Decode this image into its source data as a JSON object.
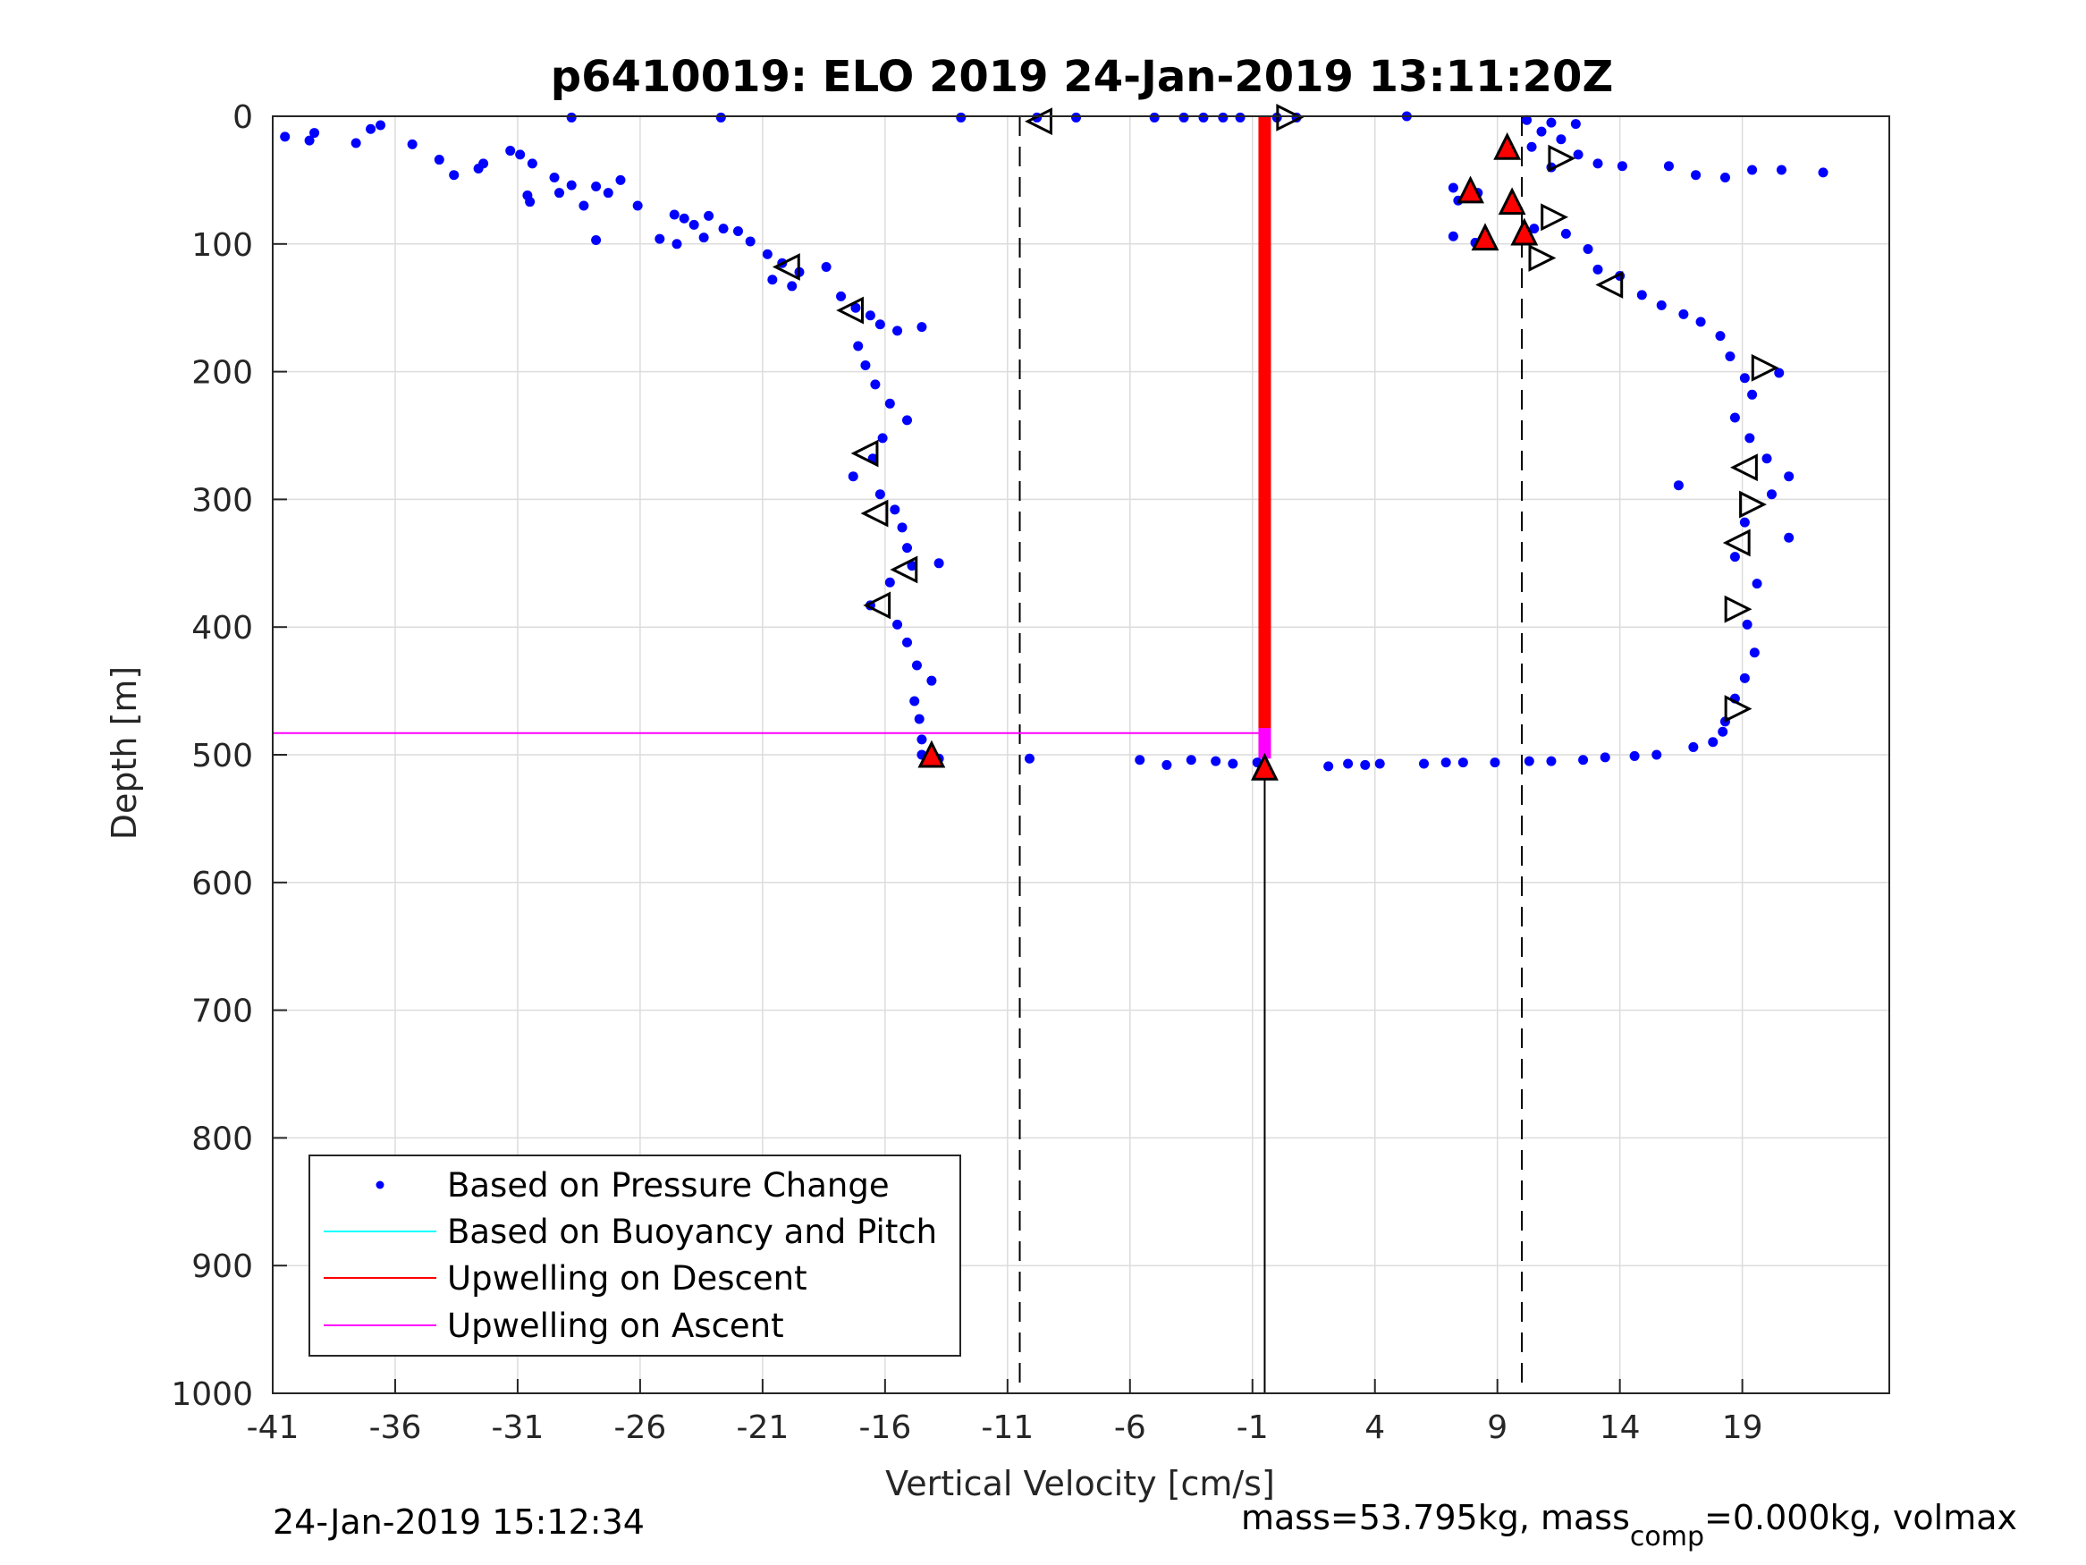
{
  "footer": {
    "timestamp": "24-Jan-2019 15:12:34",
    "mass_prefix": "mass=53.795kg, mass",
    "mass_sub": "comp",
    "mass_suffix": "=0.000kg, volmax"
  },
  "colors": {
    "pressure": "#0000ff",
    "buoyancy": "#00ffff",
    "descent": "#ff0000",
    "ascent": "#ff00ff",
    "marker_fill": "#ff0000",
    "reference": "#000000"
  },
  "chart_data": {
    "type": "scatter",
    "title": "p6410019: ELO 2019 24-Jan-2019 13:11:20Z",
    "xlabel": "Vertical Velocity [cm/s]",
    "ylabel": "Depth [m]",
    "xlim": [
      -41,
      25
    ],
    "ylim": [
      0,
      1000
    ],
    "y_reversed": true,
    "grid": true,
    "legend_position": "bottom-left",
    "xticks": [
      -41,
      -36,
      -31,
      -26,
      -21,
      -16,
      -11,
      -6,
      -1,
      4,
      9,
      14,
      19
    ],
    "yticks": [
      0,
      100,
      200,
      300,
      400,
      500,
      600,
      700,
      800,
      900,
      1000
    ],
    "legend": [
      "Based on Pressure Change",
      "Based on Buoyancy and Pitch",
      "Upwelling on Descent",
      "Upwelling on Ascent"
    ],
    "reference_lines": {
      "dashed_x": [
        -10.5,
        10
      ],
      "solid_x": -0.5,
      "solid_y_range": [
        509,
        1000
      ],
      "ascent_depths": [
        0,
        483
      ]
    },
    "series": [
      {
        "name": "Based on Pressure Change",
        "kind": "points",
        "points": [
          [
            -40.5,
            16
          ],
          [
            -39.5,
            19
          ],
          [
            -39.3,
            13
          ],
          [
            -37.6,
            21
          ],
          [
            -37,
            10
          ],
          [
            -36.6,
            7
          ],
          [
            -35.3,
            22
          ],
          [
            -34.2,
            34
          ],
          [
            -33.6,
            46
          ],
          [
            -32.6,
            41
          ],
          [
            -32.4,
            37
          ],
          [
            -31.3,
            27
          ],
          [
            -30.9,
            30
          ],
          [
            -30.4,
            37
          ],
          [
            -30.6,
            62
          ],
          [
            -30.5,
            67
          ],
          [
            -29.5,
            48
          ],
          [
            -29.3,
            60
          ],
          [
            -28.8,
            54
          ],
          [
            -28.3,
            70
          ],
          [
            -27.8,
            55
          ],
          [
            -27.3,
            60
          ],
          [
            -26.8,
            50
          ],
          [
            -26.1,
            70
          ],
          [
            -24.6,
            77
          ],
          [
            -24.2,
            80
          ],
          [
            -23.8,
            85
          ],
          [
            -23.2,
            78
          ],
          [
            -22.6,
            88
          ],
          [
            -22,
            90
          ],
          [
            -21.5,
            98
          ],
          [
            -27.8,
            97
          ],
          [
            -25.2,
            96
          ],
          [
            -24.5,
            100
          ],
          [
            -23.4,
            95
          ],
          [
            -28.8,
            1
          ],
          [
            -22.7,
            1
          ],
          [
            -12.9,
            1
          ],
          [
            -9.8,
            1
          ],
          [
            -8.2,
            1
          ],
          [
            -5,
            1
          ],
          [
            -3.8,
            1
          ],
          [
            -3,
            1
          ],
          [
            -2.2,
            1
          ],
          [
            -1.5,
            1
          ],
          [
            0,
            1
          ],
          [
            0.8,
            1
          ],
          [
            5.3,
            0
          ],
          [
            -20.8,
            108
          ],
          [
            -20.2,
            115
          ],
          [
            -19.5,
            122
          ],
          [
            -20.6,
            128
          ],
          [
            -19.8,
            133
          ],
          [
            -18.4,
            118
          ],
          [
            -17.8,
            141
          ],
          [
            -17.2,
            150
          ],
          [
            -16.6,
            156
          ],
          [
            -16.2,
            163
          ],
          [
            -15.5,
            168
          ],
          [
            -14.5,
            165
          ],
          [
            -17.1,
            180
          ],
          [
            -16.8,
            195
          ],
          [
            -16.4,
            210
          ],
          [
            -15.8,
            225
          ],
          [
            -15.1,
            238
          ],
          [
            -16.1,
            252
          ],
          [
            -16.5,
            268
          ],
          [
            -17.3,
            282
          ],
          [
            -16.2,
            296
          ],
          [
            -15.6,
            308
          ],
          [
            -15.3,
            322
          ],
          [
            -15.1,
            338
          ],
          [
            -14.9,
            352
          ],
          [
            -13.8,
            350
          ],
          [
            -15.8,
            365
          ],
          [
            -16.6,
            383
          ],
          [
            -15.5,
            398
          ],
          [
            -15.1,
            412
          ],
          [
            -14.7,
            430
          ],
          [
            -14.1,
            442
          ],
          [
            -14.8,
            458
          ],
          [
            -14.6,
            472
          ],
          [
            -14.5,
            488
          ],
          [
            -14.5,
            500
          ],
          [
            -13.8,
            503
          ],
          [
            -10.1,
            503
          ],
          [
            -5.6,
            504
          ],
          [
            -4.5,
            508
          ],
          [
            -3.5,
            504
          ],
          [
            -2.5,
            505
          ],
          [
            -1.8,
            507
          ],
          [
            -0.8,
            506
          ],
          [
            2.1,
            509
          ],
          [
            2.9,
            507
          ],
          [
            3.6,
            508
          ],
          [
            4.2,
            507
          ],
          [
            6,
            507
          ],
          [
            6.9,
            506
          ],
          [
            7.6,
            506
          ],
          [
            8.9,
            506
          ],
          [
            10.3,
            505
          ],
          [
            11.2,
            505
          ],
          [
            12.5,
            504
          ],
          [
            13.4,
            502
          ],
          [
            14.6,
            501
          ],
          [
            15.5,
            500
          ],
          [
            17,
            494
          ],
          [
            17.8,
            490
          ],
          [
            10.2,
            3
          ],
          [
            11.2,
            5
          ],
          [
            12.2,
            6
          ],
          [
            10.8,
            12
          ],
          [
            11.6,
            18
          ],
          [
            10.4,
            24
          ],
          [
            12.3,
            30
          ],
          [
            13.1,
            37
          ],
          [
            14.1,
            39
          ],
          [
            11.2,
            40
          ],
          [
            7.2,
            56
          ],
          [
            8.2,
            60
          ],
          [
            7.4,
            66
          ],
          [
            7.2,
            94
          ],
          [
            8.6,
            97
          ],
          [
            8.1,
            99
          ],
          [
            10.5,
            88
          ],
          [
            11.8,
            92
          ],
          [
            12.7,
            104
          ],
          [
            13.1,
            120
          ],
          [
            14,
            125
          ],
          [
            14.9,
            140
          ],
          [
            15.7,
            148
          ],
          [
            16.6,
            155
          ],
          [
            17.3,
            161
          ],
          [
            18.1,
            172
          ],
          [
            18.5,
            188
          ],
          [
            19.1,
            205
          ],
          [
            20.5,
            201
          ],
          [
            19.4,
            218
          ],
          [
            18.7,
            236
          ],
          [
            19.3,
            252
          ],
          [
            20,
            268
          ],
          [
            20.9,
            282
          ],
          [
            20.2,
            296
          ],
          [
            19.1,
            318
          ],
          [
            20.9,
            330
          ],
          [
            18.7,
            345
          ],
          [
            19.6,
            366
          ],
          [
            19.2,
            398
          ],
          [
            19.5,
            420
          ],
          [
            19.1,
            440
          ],
          [
            18.7,
            456
          ],
          [
            18.3,
            474
          ],
          [
            18.2,
            482
          ],
          [
            16.4,
            289
          ],
          [
            16,
            39
          ],
          [
            17.1,
            46
          ],
          [
            18.3,
            48
          ],
          [
            19.4,
            42
          ],
          [
            20.6,
            42
          ],
          [
            22.3,
            44
          ]
        ]
      },
      {
        "name": "Upwelling on Descent",
        "kind": "vertical_band",
        "x": -0.5,
        "depth_range": [
          0,
          479
        ]
      },
      {
        "name": "Upwelling on Ascent",
        "kind": "vertical_band",
        "x": -0.5,
        "depth_range": [
          479,
          503
        ]
      },
      {
        "name": "left-triangles",
        "kind": "markers",
        "shape": "triangle-left",
        "filled": false,
        "points": [
          [
            -20,
            118
          ],
          [
            -17.4,
            152
          ],
          [
            -16.8,
            264
          ],
          [
            -16.4,
            311
          ],
          [
            -15.2,
            355
          ],
          [
            -16.3,
            383
          ],
          [
            -9.7,
            4
          ],
          [
            13.6,
            132
          ],
          [
            18.8,
            334
          ],
          [
            19.1,
            275
          ]
        ]
      },
      {
        "name": "right-triangles",
        "kind": "markers",
        "shape": "triangle-right",
        "filled": false,
        "points": [
          [
            0.5,
            1
          ],
          [
            11.6,
            33
          ],
          [
            11.3,
            79
          ],
          [
            10.8,
            111
          ],
          [
            19.9,
            197
          ],
          [
            19.4,
            304
          ],
          [
            18.8,
            386
          ],
          [
            18.8,
            464
          ]
        ]
      },
      {
        "name": "up-triangles-red",
        "kind": "markers",
        "shape": "triangle-up",
        "filled": true,
        "points": [
          [
            9.4,
            24
          ],
          [
            7.9,
            58
          ],
          [
            9.6,
            67
          ],
          [
            8.5,
            95
          ],
          [
            10.1,
            91
          ],
          [
            -14.1,
            500
          ],
          [
            -0.5,
            510
          ]
        ]
      }
    ]
  }
}
